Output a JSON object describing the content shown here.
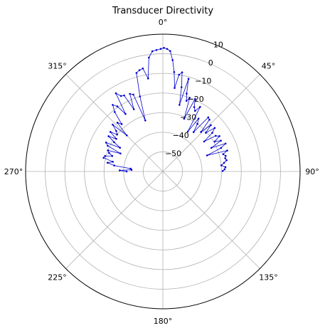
{
  "chart_data": {
    "type": "polar-line",
    "title": "Transducer Directivity",
    "theta_zero_location": "N",
    "theta_direction": "clockwise",
    "theta_ticks": [
      0,
      45,
      90,
      135,
      180,
      225,
      270,
      315
    ],
    "theta_tick_labels": [
      "0°",
      "45°",
      "90°",
      "135°",
      "180°",
      "225°",
      "270°",
      "315°"
    ],
    "rlim": [
      -60,
      10
    ],
    "r_ticks": [
      -50,
      -40,
      -30,
      -20,
      -10,
      0,
      10
    ],
    "r_tick_labels": [
      "−50",
      "−40",
      "−30",
      "−20",
      "−10",
      "0",
      "10"
    ],
    "r_label_angle": 22.5,
    "grid": true,
    "series": [
      {
        "color": "#0000cc",
        "marker": "dot",
        "points": [
          [
            270.0,
            -41.5
          ],
          [
            271.5,
            -38.0
          ],
          [
            273.0,
            -44.0
          ],
          [
            275.0,
            -43.5
          ],
          [
            277.0,
            -35.0
          ],
          [
            279.0,
            -31.5
          ],
          [
            281.0,
            -34.0
          ],
          [
            283.0,
            -29.0
          ],
          [
            285.0,
            -29.5
          ],
          [
            287.0,
            -33.0
          ],
          [
            289.0,
            -31.0
          ],
          [
            291.0,
            -30.0
          ],
          [
            293.0,
            -36.5
          ],
          [
            295.0,
            -29.0
          ],
          [
            297.0,
            -27.5
          ],
          [
            299.0,
            -35.0
          ],
          [
            301.0,
            -31.0
          ],
          [
            303.0,
            -27.0
          ],
          [
            305.0,
            -31.0
          ],
          [
            307.0,
            -26.5
          ],
          [
            309.0,
            -30.0
          ],
          [
            311.0,
            -28.5
          ],
          [
            313.0,
            -25.0
          ],
          [
            315.0,
            -34.0
          ],
          [
            317.0,
            -26.0
          ],
          [
            319.0,
            -28.0
          ],
          [
            321.0,
            -21.0
          ],
          [
            323.0,
            -17.5
          ],
          [
            325.0,
            -19.5
          ],
          [
            327.0,
            -25.0
          ],
          [
            329.0,
            -13.5
          ],
          [
            331.0,
            -16.0
          ],
          [
            333.0,
            -16.5
          ],
          [
            335.0,
            -25.0
          ],
          [
            337.0,
            -17.0
          ],
          [
            339.0,
            -18.0
          ],
          [
            341.0,
            -32.5
          ],
          [
            343.0,
            -20.0
          ],
          [
            345.0,
            -8.0
          ],
          [
            347.0,
            -7.0
          ],
          [
            349.0,
            -6.5
          ],
          [
            351.0,
            -12.0
          ],
          [
            353.0,
            -1.5
          ],
          [
            355.0,
            1.5
          ],
          [
            357.0,
            2.0
          ],
          [
            359.0,
            2.5
          ],
          [
            0.5,
            3.0
          ],
          [
            2.0,
            2.5
          ],
          [
            3.5,
            1.5
          ],
          [
            5.0,
            -3.0
          ],
          [
            6.5,
            -9.0
          ],
          [
            8.0,
            -17.0
          ],
          [
            9.5,
            -10.0
          ],
          [
            11.0,
            -8.5
          ],
          [
            12.5,
            -16.0
          ],
          [
            14.0,
            -25.0
          ],
          [
            15.5,
            -11.0
          ],
          [
            17.0,
            -18.5
          ],
          [
            18.5,
            -22.0
          ],
          [
            20.0,
            -20.0
          ],
          [
            22.0,
            -31.0
          ],
          [
            24.0,
            -19.5
          ],
          [
            26.0,
            -23.5
          ],
          [
            28.0,
            -25.0
          ],
          [
            30.0,
            -22.0
          ],
          [
            32.0,
            -36.0
          ],
          [
            34.0,
            -27.5
          ],
          [
            36.0,
            -30.0
          ],
          [
            38.0,
            -34.5
          ],
          [
            40.0,
            -24.0
          ],
          [
            42.0,
            -24.5
          ],
          [
            44.0,
            -32.0
          ],
          [
            46.0,
            -26.0
          ],
          [
            48.0,
            -30.5
          ],
          [
            50.0,
            -25.5
          ],
          [
            52.0,
            -28.0
          ],
          [
            54.0,
            -34.0
          ],
          [
            56.0,
            -27.5
          ],
          [
            58.0,
            -26.0
          ],
          [
            60.0,
            -29.5
          ],
          [
            62.0,
            -26.5
          ],
          [
            64.0,
            -32.5
          ],
          [
            66.0,
            -25.0
          ],
          [
            68.0,
            -28.0
          ],
          [
            70.0,
            -36.0
          ],
          [
            72.0,
            -25.5
          ],
          [
            74.0,
            -28.0
          ],
          [
            76.0,
            -27.0
          ],
          [
            78.0,
            -27.5
          ],
          [
            80.0,
            -27.0
          ],
          [
            82.0,
            -28.5
          ],
          [
            84.0,
            -30.0
          ],
          [
            86.0,
            -28.0
          ],
          [
            88.0,
            -28.5
          ],
          [
            89.5,
            -29.5
          ]
        ]
      }
    ]
  }
}
